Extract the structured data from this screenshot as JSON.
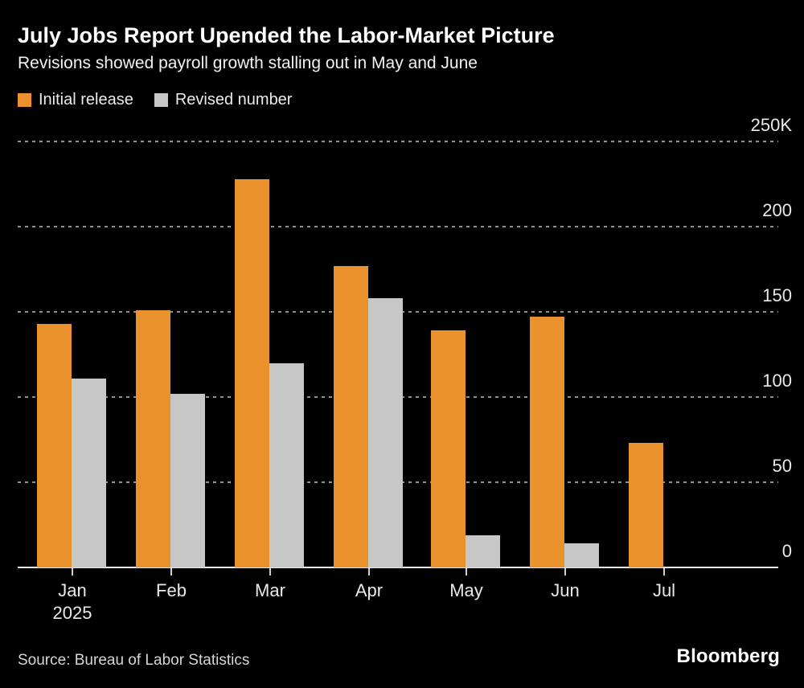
{
  "title": "July Jobs Report Upended the Labor-Market Picture",
  "subtitle": "Revisions showed payroll growth stalling out in May and June",
  "legend": [
    {
      "label": "Initial release",
      "color": "#E8912D"
    },
    {
      "label": "Revised number",
      "color": "#C7C7C7"
    }
  ],
  "footer": {
    "source": "Source: Bureau of Labor Statistics",
    "brand": "Bloomberg"
  },
  "colors": {
    "background": "#000000",
    "initial_bar": "#E8912D",
    "revised_bar": "#C7C7C7",
    "gridline": "#8f8f8f",
    "axis_text": "#e9e9e9"
  },
  "chart_data": {
    "type": "bar",
    "title": "July Jobs Report Upended the Labor-Market Picture",
    "subtitle": "Revisions showed payroll growth stalling out in May and June",
    "categories": [
      "Jan",
      "Feb",
      "Mar",
      "Apr",
      "May",
      "Jun",
      "Jul"
    ],
    "x_sublabels": [
      "2025",
      "",
      "",
      "",
      "",
      "",
      ""
    ],
    "series": [
      {
        "name": "Initial release",
        "color": "#E8912D",
        "values": [
          143,
          151,
          228,
          177,
          139,
          147,
          73
        ]
      },
      {
        "name": "Revised number",
        "color": "#C7C7C7",
        "values": [
          111,
          102,
          120,
          158,
          19,
          14,
          null
        ]
      }
    ],
    "xlabel": "",
    "ylabel": "",
    "ylim": [
      0,
      250
    ],
    "yticks": [
      {
        "value": 0,
        "label": "0"
      },
      {
        "value": 50,
        "label": "50"
      },
      {
        "value": 100,
        "label": "100"
      },
      {
        "value": 150,
        "label": "150"
      },
      {
        "value": 200,
        "label": "200"
      },
      {
        "value": 250,
        "label": "250K"
      }
    ],
    "grid": "horizontal-dashed",
    "legend_position": "top-left"
  }
}
